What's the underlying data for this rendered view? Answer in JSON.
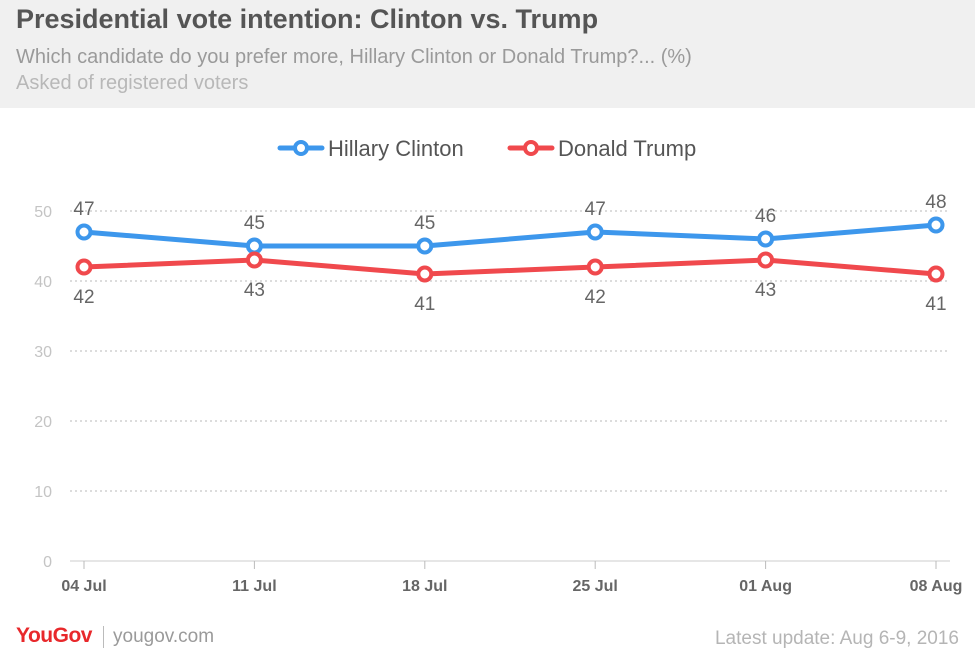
{
  "header": {
    "title": "Presidential vote intention: Clinton vs. Trump",
    "subtitle": "Which candidate do you prefer more, Hillary Clinton or Donald Trump?... (%)",
    "note": "Asked of registered voters"
  },
  "footer": {
    "brand": "YouGov",
    "site": "yougov.com",
    "update": "Latest update: Aug 6-9, 2016"
  },
  "chart_data": {
    "type": "line",
    "title": "Presidential vote intention: Clinton vs. Trump",
    "categories": [
      "04 Jul",
      "11 Jul",
      "18 Jul",
      "25 Jul",
      "01 Aug",
      "08 Aug"
    ],
    "series": [
      {
        "name": "Hillary Clinton",
        "values": [
          47,
          45,
          45,
          47,
          46,
          48
        ],
        "color": "#3d97ec"
      },
      {
        "name": "Donald Trump",
        "values": [
          42,
          43,
          41,
          42,
          43,
          41
        ],
        "color": "#f0494d"
      }
    ],
    "yticks": [
      0,
      10,
      20,
      30,
      40,
      50
    ],
    "ylim": [
      0,
      50
    ],
    "grid": true,
    "legend": "top-center",
    "data_labels": true
  }
}
